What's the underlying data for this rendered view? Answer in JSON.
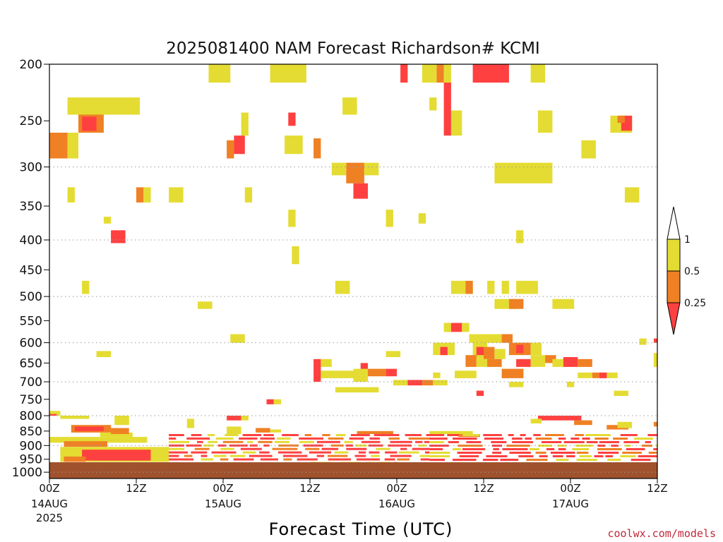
{
  "chart_data": {
    "type": "heatmap",
    "title": "2025081400 NAM Forecast Richardson# KCMI",
    "xlabel": "Forecast Time (UTC)",
    "credit": "coolwx.com/models",
    "y_pressure_range_hPa": [
      1025,
      200
    ],
    "y_ticks": [
      "200",
      "250",
      "300",
      "350",
      "400",
      "450",
      "500",
      "550",
      "600",
      "650",
      "700",
      "750",
      "800",
      "850",
      "900",
      "950",
      "1000"
    ],
    "x_range_hours": [
      0,
      84
    ],
    "x_ticks": [
      {
        "hour": 0,
        "label": "00Z",
        "date": "14AUG",
        "year": "2025"
      },
      {
        "hour": 12,
        "label": "12Z"
      },
      {
        "hour": 24,
        "label": "00Z",
        "date": "15AUG"
      },
      {
        "hour": 36,
        "label": "12Z"
      },
      {
        "hour": 48,
        "label": "00Z",
        "date": "16AUG"
      },
      {
        "hour": 60,
        "label": "12Z"
      },
      {
        "hour": 72,
        "label": "00Z",
        "date": "17AUG"
      },
      {
        "hour": 84,
        "label": "12Z"
      }
    ],
    "grid_levels": [
      300,
      400,
      500,
      600,
      700,
      800,
      900,
      1000
    ],
    "colorbar": {
      "levels": [
        "0.25",
        "0.5",
        "1"
      ],
      "colors": {
        "lt_0_25": "#ff4040",
        "0_25_to_0_5": "#ef8024",
        "0_5_to_1": "#e4dc32",
        "gt_1": "#ffffff"
      }
    },
    "ground_color": "#a0522d",
    "cells": [
      {
        "h0": 22.0,
        "h1": 25.0,
        "p0": 200,
        "p1": 215,
        "c": "y"
      },
      {
        "h0": 30.5,
        "h1": 35.5,
        "p0": 200,
        "p1": 215,
        "c": "y"
      },
      {
        "h0": 48.5,
        "h1": 49.5,
        "p0": 200,
        "p1": 215,
        "c": "r"
      },
      {
        "h0": 51.5,
        "h1": 53.5,
        "p0": 200,
        "p1": 215,
        "c": "y"
      },
      {
        "h0": 53.5,
        "h1": 54.5,
        "p0": 200,
        "p1": 215,
        "c": "o"
      },
      {
        "h0": 54.5,
        "h1": 55.5,
        "p0": 200,
        "p1": 215,
        "c": "y"
      },
      {
        "h0": 58.5,
        "h1": 63.5,
        "p0": 200,
        "p1": 215,
        "c": "r"
      },
      {
        "h0": 66.5,
        "h1": 68.5,
        "p0": 200,
        "p1": 215,
        "c": "y"
      },
      {
        "h0": 2.5,
        "h1": 12.5,
        "p0": 228,
        "p1": 244,
        "c": "y"
      },
      {
        "h0": 4.0,
        "h1": 7.5,
        "p0": 244,
        "p1": 262,
        "c": "o"
      },
      {
        "h0": 4.5,
        "h1": 6.5,
        "p0": 246,
        "p1": 260,
        "c": "r"
      },
      {
        "h0": 0.0,
        "h1": 2.5,
        "p0": 262,
        "p1": 290,
        "c": "o"
      },
      {
        "h0": 2.5,
        "h1": 4.0,
        "p0": 262,
        "p1": 290,
        "c": "y"
      },
      {
        "h0": 40.5,
        "h1": 42.5,
        "p0": 228,
        "p1": 244,
        "c": "y"
      },
      {
        "h0": 41.0,
        "h1": 43.5,
        "p0": 295,
        "p1": 320,
        "c": "o"
      },
      {
        "h0": 42.0,
        "h1": 44.0,
        "p0": 320,
        "p1": 340,
        "c": "r"
      },
      {
        "h0": 39.0,
        "h1": 41.0,
        "p0": 295,
        "p1": 310,
        "c": "y"
      },
      {
        "h0": 43.5,
        "h1": 45.5,
        "p0": 295,
        "p1": 310,
        "c": "y"
      },
      {
        "h0": 32.5,
        "h1": 35.0,
        "p0": 265,
        "p1": 285,
        "c": "y"
      },
      {
        "h0": 33.0,
        "h1": 34.0,
        "p0": 242,
        "p1": 255,
        "c": "r"
      },
      {
        "h0": 25.5,
        "h1": 27.0,
        "p0": 265,
        "p1": 285,
        "c": "r"
      },
      {
        "h0": 24.5,
        "h1": 25.5,
        "p0": 270,
        "p1": 290,
        "c": "o"
      },
      {
        "h0": 26.5,
        "h1": 27.5,
        "p0": 242,
        "p1": 265,
        "c": "y"
      },
      {
        "h0": 36.5,
        "h1": 37.5,
        "p0": 268,
        "p1": 290,
        "c": "o"
      },
      {
        "h0": 54.5,
        "h1": 55.5,
        "p0": 215,
        "p1": 265,
        "c": "r"
      },
      {
        "h0": 55.5,
        "h1": 57.0,
        "p0": 240,
        "p1": 265,
        "c": "y"
      },
      {
        "h0": 52.5,
        "h1": 53.5,
        "p0": 228,
        "p1": 240,
        "c": "y"
      },
      {
        "h0": 61.5,
        "h1": 69.5,
        "p0": 295,
        "p1": 320,
        "c": "y"
      },
      {
        "h0": 67.5,
        "h1": 69.5,
        "p0": 240,
        "p1": 262,
        "c": "y"
      },
      {
        "h0": 73.5,
        "h1": 75.5,
        "p0": 270,
        "p1": 290,
        "c": "y"
      },
      {
        "h0": 77.5,
        "h1": 80.5,
        "p0": 245,
        "p1": 262,
        "c": "y"
      },
      {
        "h0": 79.0,
        "h1": 80.5,
        "p0": 245,
        "p1": 260,
        "c": "r"
      },
      {
        "h0": 78.5,
        "h1": 79.5,
        "p0": 245,
        "p1": 252,
        "c": "o"
      },
      {
        "h0": 16.5,
        "h1": 18.5,
        "p0": 325,
        "p1": 345,
        "c": "y"
      },
      {
        "h0": 12.0,
        "h1": 13.0,
        "p0": 325,
        "p1": 345,
        "c": "o"
      },
      {
        "h0": 13.0,
        "h1": 14.0,
        "p0": 325,
        "p1": 345,
        "c": "y"
      },
      {
        "h0": 2.5,
        "h1": 3.5,
        "p0": 325,
        "p1": 345,
        "c": "y"
      },
      {
        "h0": 8.5,
        "h1": 10.5,
        "p0": 385,
        "p1": 405,
        "c": "r"
      },
      {
        "h0": 7.5,
        "h1": 8.5,
        "p0": 365,
        "p1": 375,
        "c": "y"
      },
      {
        "h0": 27.0,
        "h1": 28.0,
        "p0": 325,
        "p1": 345,
        "c": "y"
      },
      {
        "h0": 33.0,
        "h1": 34.0,
        "p0": 355,
        "p1": 380,
        "c": "y"
      },
      {
        "h0": 33.5,
        "h1": 34.5,
        "p0": 410,
        "p1": 440,
        "c": "y"
      },
      {
        "h0": 46.5,
        "h1": 47.5,
        "p0": 355,
        "p1": 380,
        "c": "y"
      },
      {
        "h0": 51.0,
        "h1": 52.0,
        "p0": 360,
        "p1": 375,
        "c": "y"
      },
      {
        "h0": 64.5,
        "h1": 65.5,
        "p0": 385,
        "p1": 405,
        "c": "y"
      },
      {
        "h0": 79.5,
        "h1": 81.5,
        "p0": 325,
        "p1": 345,
        "c": "y"
      },
      {
        "h0": 4.5,
        "h1": 5.5,
        "p0": 470,
        "p1": 495,
        "c": "y"
      },
      {
        "h0": 20.5,
        "h1": 22.5,
        "p0": 510,
        "p1": 525,
        "c": "y"
      },
      {
        "h0": 39.5,
        "h1": 41.5,
        "p0": 470,
        "p1": 495,
        "c": "y"
      },
      {
        "h0": 55.5,
        "h1": 58.5,
        "p0": 470,
        "p1": 495,
        "c": "y"
      },
      {
        "h0": 57.5,
        "h1": 58.5,
        "p0": 470,
        "p1": 495,
        "c": "o"
      },
      {
        "h0": 60.5,
        "h1": 61.5,
        "p0": 470,
        "p1": 495,
        "c": "y"
      },
      {
        "h0": 62.5,
        "h1": 63.5,
        "p0": 470,
        "p1": 495,
        "c": "y"
      },
      {
        "h0": 64.5,
        "h1": 67.5,
        "p0": 470,
        "p1": 495,
        "c": "y"
      },
      {
        "h0": 61.5,
        "h1": 64.5,
        "p0": 505,
        "p1": 525,
        "c": "y"
      },
      {
        "h0": 63.5,
        "h1": 65.5,
        "p0": 505,
        "p1": 525,
        "c": "o"
      },
      {
        "h0": 69.5,
        "h1": 72.5,
        "p0": 505,
        "p1": 525,
        "c": "y"
      },
      {
        "h0": 55.0,
        "h1": 57.0,
        "p0": 555,
        "p1": 575,
        "c": "r"
      },
      {
        "h0": 54.5,
        "h1": 55.5,
        "p0": 555,
        "p1": 575,
        "c": "y"
      },
      {
        "h0": 57.0,
        "h1": 58.0,
        "p0": 555,
        "p1": 575,
        "c": "y"
      },
      {
        "h0": 25.0,
        "h1": 27.0,
        "p0": 580,
        "p1": 600,
        "c": "y"
      },
      {
        "h0": 6.5,
        "h1": 8.5,
        "p0": 620,
        "p1": 635,
        "c": "y"
      },
      {
        "h0": 46.5,
        "h1": 48.5,
        "p0": 620,
        "p1": 635,
        "c": "y"
      },
      {
        "h0": 53.0,
        "h1": 56.0,
        "p0": 600,
        "p1": 630,
        "c": "y"
      },
      {
        "h0": 54.0,
        "h1": 55.0,
        "p0": 610,
        "p1": 630,
        "c": "r"
      },
      {
        "h0": 58.0,
        "h1": 63.0,
        "p0": 580,
        "p1": 600,
        "c": "y"
      },
      {
        "h0": 62.5,
        "h1": 64.0,
        "p0": 580,
        "p1": 600,
        "c": "o"
      },
      {
        "h0": 58.5,
        "h1": 60.5,
        "p0": 600,
        "p1": 640,
        "c": "y"
      },
      {
        "h0": 59.0,
        "h1": 60.0,
        "p0": 610,
        "p1": 630,
        "c": "r"
      },
      {
        "h0": 60.0,
        "h1": 61.5,
        "p0": 610,
        "p1": 640,
        "c": "o"
      },
      {
        "h0": 61.5,
        "h1": 63.0,
        "p0": 615,
        "p1": 640,
        "c": "y"
      },
      {
        "h0": 63.5,
        "h1": 66.5,
        "p0": 600,
        "p1": 630,
        "c": "o"
      },
      {
        "h0": 64.5,
        "h1": 65.5,
        "p0": 605,
        "p1": 625,
        "c": "r"
      },
      {
        "h0": 66.5,
        "h1": 68.0,
        "p0": 600,
        "p1": 630,
        "c": "y"
      },
      {
        "h0": 57.5,
        "h1": 59.0,
        "p0": 630,
        "p1": 660,
        "c": "o"
      },
      {
        "h0": 59.0,
        "h1": 61.0,
        "p0": 640,
        "p1": 660,
        "c": "y"
      },
      {
        "h0": 60.5,
        "h1": 62.5,
        "p0": 640,
        "p1": 660,
        "c": "o"
      },
      {
        "h0": 62.5,
        "h1": 65.5,
        "p0": 665,
        "p1": 690,
        "c": "o"
      },
      {
        "h0": 64.5,
        "h1": 66.5,
        "p0": 640,
        "p1": 660,
        "c": "r"
      },
      {
        "h0": 66.5,
        "h1": 68.5,
        "p0": 630,
        "p1": 660,
        "c": "y"
      },
      {
        "h0": 68.5,
        "h1": 70.0,
        "p0": 630,
        "p1": 650,
        "c": "o"
      },
      {
        "h0": 71.0,
        "h1": 73.0,
        "p0": 635,
        "p1": 660,
        "c": "r"
      },
      {
        "h0": 73.0,
        "h1": 75.0,
        "p0": 640,
        "p1": 660,
        "c": "o"
      },
      {
        "h0": 69.5,
        "h1": 71.0,
        "p0": 640,
        "p1": 660,
        "c": "y"
      },
      {
        "h0": 75.0,
        "h1": 77.0,
        "p0": 675,
        "p1": 690,
        "c": "o"
      },
      {
        "h0": 77.0,
        "h1": 78.5,
        "p0": 675,
        "p1": 690,
        "c": "y"
      },
      {
        "h0": 73.0,
        "h1": 75.0,
        "p0": 675,
        "p1": 690,
        "c": "y"
      },
      {
        "h0": 76.0,
        "h1": 77.0,
        "p0": 675,
        "p1": 690,
        "c": "r"
      },
      {
        "h0": 53.0,
        "h1": 54.0,
        "p0": 675,
        "p1": 690,
        "c": "y"
      },
      {
        "h0": 56.0,
        "h1": 59.0,
        "p0": 670,
        "p1": 690,
        "c": "y"
      },
      {
        "h0": 36.5,
        "h1": 37.5,
        "p0": 640,
        "p1": 700,
        "c": "r"
      },
      {
        "h0": 37.5,
        "h1": 39.0,
        "p0": 640,
        "p1": 660,
        "c": "y"
      },
      {
        "h0": 37.5,
        "h1": 42.0,
        "p0": 670,
        "p1": 690,
        "c": "y"
      },
      {
        "h0": 43.0,
        "h1": 44.0,
        "p0": 650,
        "p1": 670,
        "c": "r"
      },
      {
        "h0": 44.0,
        "h1": 46.5,
        "p0": 665,
        "p1": 685,
        "c": "o"
      },
      {
        "h0": 46.5,
        "h1": 48.0,
        "p0": 665,
        "p1": 685,
        "c": "r"
      },
      {
        "h0": 42.0,
        "h1": 44.0,
        "p0": 665,
        "p1": 700,
        "c": "y"
      },
      {
        "h0": 49.5,
        "h1": 51.5,
        "p0": 695,
        "p1": 710,
        "c": "r"
      },
      {
        "h0": 51.5,
        "h1": 53.0,
        "p0": 695,
        "p1": 710,
        "c": "o"
      },
      {
        "h0": 53.0,
        "h1": 55.0,
        "p0": 695,
        "p1": 710,
        "c": "y"
      },
      {
        "h0": 47.5,
        "h1": 49.5,
        "p0": 695,
        "p1": 710,
        "c": "y"
      },
      {
        "h0": 39.5,
        "h1": 42.0,
        "p0": 715,
        "p1": 730,
        "c": "y"
      },
      {
        "h0": 42.0,
        "h1": 45.5,
        "p0": 715,
        "p1": 730,
        "c": "y"
      },
      {
        "h0": 59.0,
        "h1": 60.0,
        "p0": 725,
        "p1": 740,
        "c": "r"
      },
      {
        "h0": 63.5,
        "h1": 65.5,
        "p0": 700,
        "p1": 715,
        "c": "y"
      },
      {
        "h0": 71.5,
        "h1": 72.5,
        "p0": 700,
        "p1": 715,
        "c": "y"
      },
      {
        "h0": 78.0,
        "h1": 80.0,
        "p0": 725,
        "p1": 740,
        "c": "y"
      },
      {
        "h0": 30.0,
        "h1": 31.0,
        "p0": 750,
        "p1": 765,
        "c": "r"
      },
      {
        "h0": 31.0,
        "h1": 32.0,
        "p0": 750,
        "p1": 765,
        "c": "y"
      },
      {
        "h0": 83.5,
        "h1": 84.0,
        "p0": 590,
        "p1": 600,
        "c": "r"
      },
      {
        "h0": 81.5,
        "h1": 82.5,
        "p0": 590,
        "p1": 605,
        "c": "y"
      },
      {
        "h0": 83.5,
        "h1": 84.0,
        "p0": 625,
        "p1": 660,
        "c": "y"
      },
      {
        "h0": 0.0,
        "h1": 1.5,
        "p0": 785,
        "p1": 800,
        "c": "y"
      },
      {
        "h0": 0.0,
        "h1": 1.0,
        "p0": 795,
        "p1": 800,
        "c": "r"
      },
      {
        "h0": 1.5,
        "h1": 5.5,
        "p0": 800,
        "p1": 810,
        "c": "y"
      },
      {
        "h0": 9.0,
        "h1": 11.0,
        "p0": 800,
        "p1": 830,
        "c": "y"
      },
      {
        "h0": 3.0,
        "h1": 8.5,
        "p0": 830,
        "p1": 855,
        "c": "o"
      },
      {
        "h0": 3.5,
        "h1": 7.5,
        "p0": 835,
        "p1": 850,
        "c": "r"
      },
      {
        "h0": 7.0,
        "h1": 11.5,
        "p0": 855,
        "p1": 870,
        "c": "y"
      },
      {
        "h0": 8.5,
        "h1": 11.0,
        "p0": 840,
        "p1": 860,
        "c": "o"
      },
      {
        "h0": 0.0,
        "h1": 13.5,
        "p0": 870,
        "p1": 890,
        "c": "y"
      },
      {
        "h0": 2.0,
        "h1": 8.0,
        "p0": 885,
        "p1": 905,
        "c": "o"
      },
      {
        "h0": 1.5,
        "h1": 16.5,
        "p0": 905,
        "p1": 960,
        "c": "y"
      },
      {
        "h0": 4.5,
        "h1": 14.0,
        "p0": 915,
        "p1": 955,
        "c": "r"
      },
      {
        "h0": 2.0,
        "h1": 5.0,
        "p0": 940,
        "p1": 960,
        "c": "o"
      },
      {
        "h0": 24.5,
        "h1": 26.5,
        "p0": 800,
        "p1": 815,
        "c": "r"
      },
      {
        "h0": 26.5,
        "h1": 27.5,
        "p0": 800,
        "p1": 815,
        "c": "y"
      },
      {
        "h0": 19.0,
        "h1": 20.0,
        "p0": 810,
        "p1": 840,
        "c": "y"
      },
      {
        "h0": 28.5,
        "h1": 30.5,
        "p0": 840,
        "p1": 855,
        "c": "o"
      },
      {
        "h0": 30.5,
        "h1": 32.0,
        "p0": 845,
        "p1": 855,
        "c": "y"
      },
      {
        "h0": 24.5,
        "h1": 26.5,
        "p0": 835,
        "p1": 860,
        "c": "y"
      },
      {
        "h0": 67.5,
        "h1": 73.5,
        "p0": 800,
        "p1": 815,
        "c": "r"
      },
      {
        "h0": 72.5,
        "h1": 75.0,
        "p0": 815,
        "p1": 830,
        "c": "o"
      },
      {
        "h0": 66.5,
        "h1": 68.0,
        "p0": 810,
        "p1": 825,
        "c": "y"
      },
      {
        "h0": 77.0,
        "h1": 80.0,
        "p0": 830,
        "p1": 845,
        "c": "o"
      },
      {
        "h0": 78.5,
        "h1": 80.5,
        "p0": 820,
        "p1": 840,
        "c": "y"
      },
      {
        "h0": 83.5,
        "h1": 84.0,
        "p0": 820,
        "p1": 835,
        "c": "o"
      },
      {
        "h0": 42.5,
        "h1": 47.5,
        "p0": 850,
        "p1": 860,
        "c": "o"
      },
      {
        "h0": 52.5,
        "h1": 58.5,
        "p0": 850,
        "p1": 860,
        "c": "y"
      },
      {
        "h0": 56.5,
        "h1": 59.5,
        "p0": 860,
        "p1": 870,
        "c": "o"
      },
      {
        "h0": 16.5,
        "h1": 52.5,
        "p0": 860,
        "p1": 960,
        "c": "r",
        "stripe": true
      },
      {
        "h0": 52.5,
        "h1": 84.0,
        "p0": 860,
        "p1": 975,
        "c": "r",
        "stripe": true
      },
      {
        "h0": 36.0,
        "h1": 48.0,
        "p0": 960,
        "p1": 990,
        "c": "y",
        "stripe": true
      }
    ]
  }
}
